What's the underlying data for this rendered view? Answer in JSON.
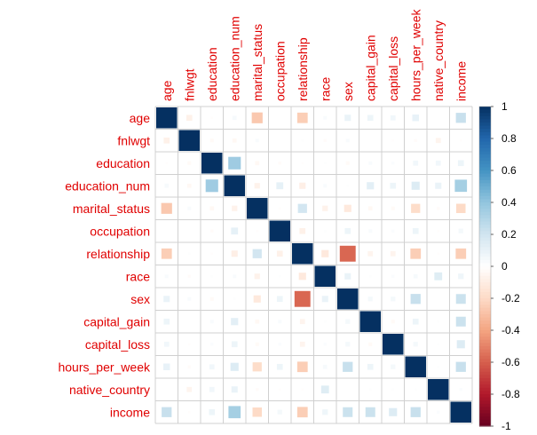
{
  "chart_data": {
    "type": "heatmap",
    "variables": [
      "age",
      "fnlwgt",
      "education",
      "education_num",
      "marital_status",
      "occupation",
      "relationship",
      "race",
      "sex",
      "capital_gain",
      "capital_loss",
      "hours_per_week",
      "native_country",
      "income"
    ],
    "matrix": [
      [
        1.0,
        -0.08,
        -0.01,
        0.04,
        -0.27,
        0.0,
        -0.25,
        0.03,
        0.09,
        0.08,
        0.06,
        0.1,
        0.0,
        0.23
      ],
      [
        -0.08,
        1.0,
        -0.03,
        -0.04,
        0.03,
        0.0,
        0.01,
        -0.02,
        0.03,
        0.0,
        -0.01,
        -0.02,
        -0.06,
        -0.01
      ],
      [
        -0.01,
        -0.03,
        1.0,
        0.36,
        -0.04,
        -0.02,
        -0.01,
        0.01,
        -0.03,
        0.03,
        0.02,
        0.06,
        0.06,
        0.08
      ],
      [
        0.04,
        -0.04,
        0.36,
        1.0,
        -0.07,
        0.11,
        -0.09,
        0.03,
        0.01,
        0.12,
        0.08,
        0.15,
        0.09,
        0.34
      ],
      [
        -0.27,
        0.03,
        -0.04,
        -0.07,
        1.0,
        -0.01,
        0.19,
        -0.07,
        -0.12,
        -0.04,
        -0.03,
        -0.19,
        -0.02,
        -0.2
      ],
      [
        0.0,
        0.0,
        -0.02,
        0.11,
        -0.01,
        1.0,
        -0.08,
        0.01,
        0.08,
        0.03,
        0.02,
        0.08,
        -0.01,
        0.05
      ],
      [
        -0.25,
        0.01,
        -0.01,
        -0.09,
        0.19,
        -0.08,
        1.0,
        -0.12,
        -0.58,
        -0.06,
        -0.06,
        -0.25,
        -0.01,
        -0.25
      ],
      [
        0.03,
        -0.02,
        0.01,
        0.03,
        -0.07,
        0.01,
        -0.12,
        1.0,
        0.09,
        0.01,
        0.02,
        0.04,
        0.14,
        0.07
      ],
      [
        0.09,
        0.03,
        -0.03,
        0.01,
        -0.12,
        0.08,
        -0.58,
        0.09,
        1.0,
        0.05,
        0.05,
        0.23,
        0.0,
        0.22
      ],
      [
        0.08,
        0.0,
        0.03,
        0.12,
        -0.04,
        0.03,
        -0.06,
        0.01,
        0.05,
        1.0,
        -0.03,
        0.08,
        0.01,
        0.22
      ],
      [
        0.06,
        -0.01,
        0.02,
        0.08,
        -0.03,
        0.02,
        -0.06,
        0.02,
        0.05,
        -0.03,
        1.0,
        0.05,
        0.01,
        0.15
      ],
      [
        0.1,
        -0.02,
        0.06,
        0.15,
        -0.19,
        0.08,
        -0.25,
        0.04,
        0.23,
        0.08,
        0.05,
        1.0,
        0.01,
        0.23
      ],
      [
        0.0,
        -0.06,
        0.06,
        0.09,
        -0.02,
        -0.01,
        -0.01,
        0.14,
        0.0,
        0.01,
        0.01,
        0.01,
        1.0,
        0.02
      ],
      [
        0.23,
        -0.01,
        0.08,
        0.34,
        -0.2,
        0.05,
        -0.25,
        0.07,
        0.22,
        0.22,
        0.15,
        0.23,
        0.02,
        1.0
      ]
    ],
    "colorbar": {
      "ticks": [
        "1",
        "0.8",
        "0.6",
        "0.4",
        "0.2",
        "0",
        "-0.2",
        "-0.4",
        "-0.6",
        "-0.8",
        "-1"
      ],
      "range": [
        -1,
        1
      ]
    },
    "palette": [
      "#67001f",
      "#b2182b",
      "#d6604d",
      "#f4a582",
      "#fddbc7",
      "#ffffff",
      "#d1e5f0",
      "#92c5de",
      "#4393c3",
      "#2166ac",
      "#053061"
    ],
    "label_color": "#e00000",
    "grid": true,
    "method": "square"
  }
}
